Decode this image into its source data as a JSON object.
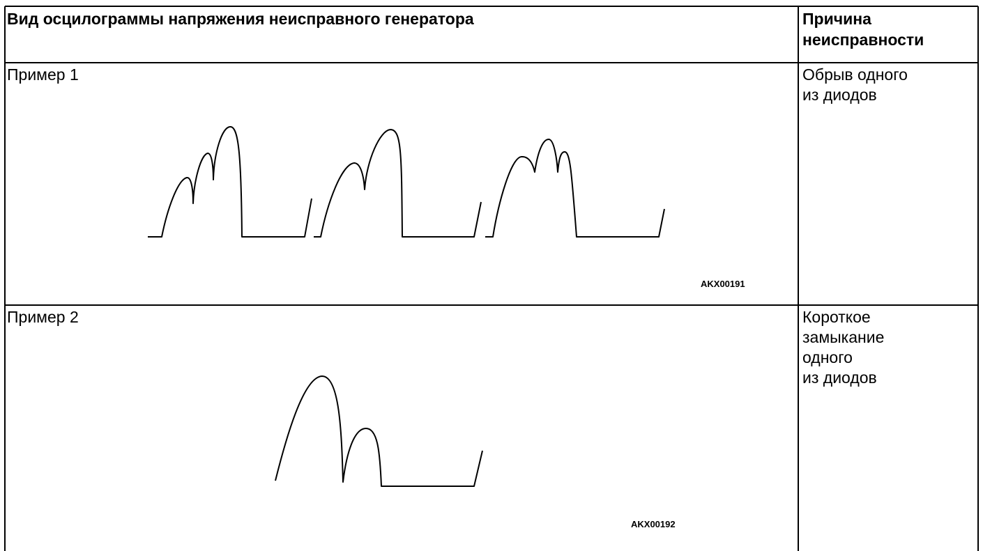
{
  "table": {
    "header": [
      "Вид осцилограммы напряжения неисправного генератора",
      "Причина неисправности"
    ],
    "rows": [
      {
        "label": "Пример 1",
        "figure_code": "AKX00191",
        "cause_lines": [
          "Обрыв одного",
          "из диодов"
        ]
      },
      {
        "label": "Пример 2",
        "figure_code": "AKX00192",
        "cause_lines": [
          "Короткое",
          "замыкание",
          "одного",
          "из диодов"
        ]
      }
    ]
  }
}
